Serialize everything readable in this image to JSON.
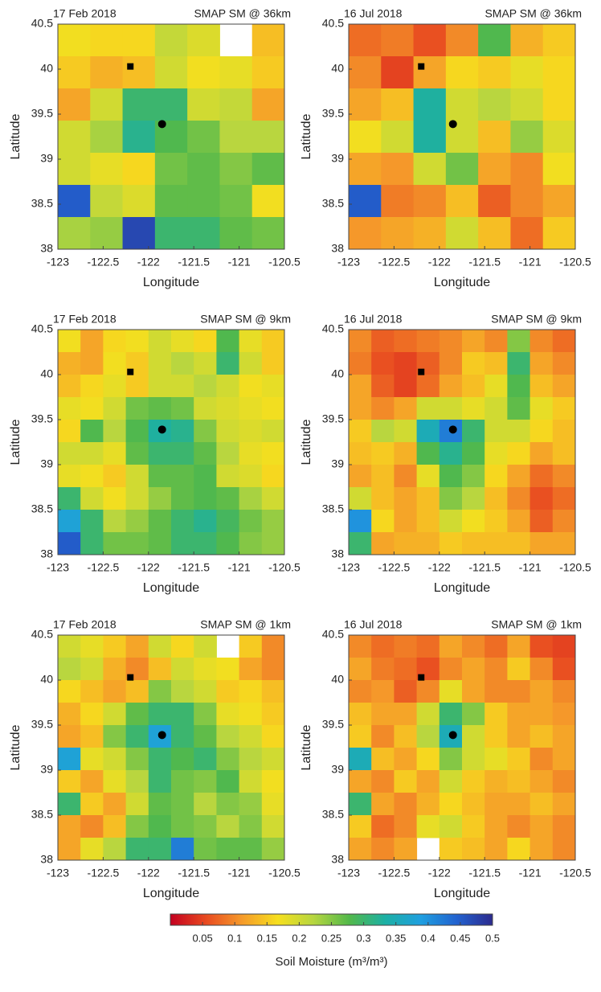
{
  "chart_data": [
    {
      "type": "heatmap",
      "date": "17 Feb 2018",
      "title": "SMAP SM @ 36km",
      "xlabel": "Longitude",
      "ylabel": "Latitude",
      "xlim": [
        -123,
        -120.5
      ],
      "ylim": [
        38,
        40.5
      ],
      "xticks": [
        -123,
        -122.5,
        -122,
        -121.5,
        -121,
        -120.5
      ],
      "yticks": [
        38,
        38.5,
        39,
        39.5,
        40,
        40.5
      ],
      "values": [
        [
          0.17,
          0.16,
          0.16,
          0.21,
          0.19,
          null,
          0.14
        ],
        [
          0.15,
          0.13,
          0.14,
          0.2,
          0.17,
          0.18,
          0.15
        ],
        [
          0.12,
          0.2,
          0.3,
          0.3,
          0.2,
          0.21,
          0.12
        ],
        [
          0.2,
          0.23,
          0.32,
          0.28,
          0.26,
          0.22,
          0.22
        ],
        [
          0.2,
          0.18,
          0.16,
          0.26,
          0.27,
          0.25,
          0.27
        ],
        [
          0.45,
          0.21,
          0.19,
          0.27,
          0.27,
          0.26,
          0.17
        ],
        [
          0.23,
          0.24,
          0.47,
          0.3,
          0.3,
          0.27,
          0.26
        ]
      ],
      "sites": [
        {
          "shape": "square",
          "x": -122.2,
          "y": 40.03
        },
        {
          "shape": "circle",
          "x": -121.85,
          "y": 39.39
        }
      ]
    },
    {
      "type": "heatmap",
      "date": "16 Jul 2018",
      "title": "SMAP SM @ 36km",
      "xlabel": "Longitude",
      "ylabel": "Latitude",
      "xlim": [
        -123,
        -120.5
      ],
      "ylim": [
        38,
        40.5
      ],
      "xticks": [
        -123,
        -122.5,
        -122,
        -121.5,
        -121,
        -120.5
      ],
      "yticks": [
        38,
        38.5,
        39,
        39.5,
        40,
        40.5
      ],
      "values": [
        [
          0.08,
          0.09,
          0.06,
          0.1,
          0.28,
          0.13,
          0.15
        ],
        [
          0.1,
          0.05,
          0.12,
          0.16,
          0.15,
          0.18,
          0.16
        ],
        [
          0.12,
          0.14,
          0.33,
          0.2,
          0.22,
          0.2,
          0.16
        ],
        [
          0.17,
          0.2,
          0.33,
          0.2,
          0.14,
          0.24,
          0.19
        ],
        [
          0.12,
          0.11,
          0.2,
          0.26,
          0.12,
          0.1,
          0.17
        ],
        [
          0.45,
          0.09,
          0.1,
          0.14,
          0.07,
          0.1,
          0.12
        ],
        [
          0.11,
          0.12,
          0.13,
          0.2,
          0.14,
          0.08,
          0.15
        ]
      ],
      "sites": [
        {
          "shape": "square",
          "x": -122.2,
          "y": 40.03
        },
        {
          "shape": "circle",
          "x": -121.85,
          "y": 39.39
        }
      ]
    },
    {
      "type": "heatmap",
      "date": "17 Feb 2018",
      "title": "SMAP SM @ 9km",
      "xlabel": "Longitude",
      "ylabel": "Latitude",
      "xlim": [
        -123,
        -120.5
      ],
      "ylim": [
        38,
        40.5
      ],
      "xticks": [
        -123,
        -122.5,
        -122,
        -121.5,
        -121,
        -120.5
      ],
      "yticks": [
        38,
        38.5,
        39,
        39.5,
        40,
        40.5
      ],
      "values": [
        [
          0.17,
          0.12,
          0.16,
          0.17,
          0.2,
          0.18,
          0.16,
          0.28,
          0.18,
          0.15
        ],
        [
          0.13,
          0.12,
          0.17,
          0.15,
          0.2,
          0.22,
          0.2,
          0.3,
          0.2,
          0.15
        ],
        [
          0.14,
          0.16,
          0.18,
          0.15,
          0.2,
          0.2,
          0.22,
          0.2,
          0.17,
          0.18
        ],
        [
          0.18,
          0.17,
          0.2,
          0.26,
          0.27,
          0.26,
          0.2,
          0.19,
          0.18,
          0.17
        ],
        [
          0.16,
          0.28,
          0.22,
          0.28,
          0.33,
          0.32,
          0.25,
          0.2,
          0.19,
          0.2
        ],
        [
          0.2,
          0.2,
          0.18,
          0.27,
          0.3,
          0.3,
          0.27,
          0.22,
          0.18,
          0.17
        ],
        [
          0.18,
          0.17,
          0.15,
          0.2,
          0.27,
          0.27,
          0.28,
          0.2,
          0.19,
          0.16
        ],
        [
          0.3,
          0.2,
          0.17,
          0.2,
          0.24,
          0.27,
          0.28,
          0.27,
          0.23,
          0.2
        ],
        [
          0.38,
          0.3,
          0.22,
          0.24,
          0.27,
          0.3,
          0.32,
          0.29,
          0.26,
          0.24
        ],
        [
          0.45,
          0.3,
          0.26,
          0.26,
          0.27,
          0.3,
          0.3,
          0.28,
          0.25,
          0.24
        ]
      ],
      "sites": [
        {
          "shape": "square",
          "x": -122.2,
          "y": 40.03
        },
        {
          "shape": "circle",
          "x": -121.85,
          "y": 39.39
        }
      ]
    },
    {
      "type": "heatmap",
      "date": "16 Jul 2018",
      "title": "SMAP SM @ 9km",
      "xlabel": "Longitude",
      "ylabel": "Latitude",
      "xlim": [
        -123,
        -120.5
      ],
      "ylim": [
        38,
        40.5
      ],
      "xticks": [
        -123,
        -122.5,
        -122,
        -121.5,
        -121,
        -120.5
      ],
      "yticks": [
        38,
        38.5,
        39,
        39.5,
        40,
        40.5
      ],
      "values": [
        [
          0.1,
          0.07,
          0.08,
          0.09,
          0.1,
          0.12,
          0.1,
          0.25,
          0.1,
          0.08
        ],
        [
          0.09,
          0.06,
          0.05,
          0.07,
          0.1,
          0.15,
          0.14,
          0.3,
          0.12,
          0.1
        ],
        [
          0.12,
          0.07,
          0.05,
          0.08,
          0.12,
          0.14,
          0.18,
          0.28,
          0.14,
          0.12
        ],
        [
          0.12,
          0.1,
          0.12,
          0.2,
          0.2,
          0.18,
          0.2,
          0.27,
          0.18,
          0.15
        ],
        [
          0.15,
          0.22,
          0.2,
          0.35,
          0.42,
          0.3,
          0.2,
          0.2,
          0.16,
          0.14
        ],
        [
          0.14,
          0.15,
          0.13,
          0.28,
          0.32,
          0.28,
          0.18,
          0.16,
          0.12,
          0.14
        ],
        [
          0.12,
          0.14,
          0.1,
          0.18,
          0.28,
          0.25,
          0.16,
          0.12,
          0.08,
          0.1
        ],
        [
          0.2,
          0.14,
          0.12,
          0.14,
          0.25,
          0.22,
          0.14,
          0.1,
          0.06,
          0.08
        ],
        [
          0.4,
          0.16,
          0.12,
          0.14,
          0.2,
          0.17,
          0.15,
          0.12,
          0.07,
          0.1
        ],
        [
          0.3,
          0.12,
          0.13,
          0.13,
          0.15,
          0.14,
          0.14,
          0.14,
          0.12,
          0.12
        ]
      ],
      "sites": [
        {
          "shape": "square",
          "x": -122.2,
          "y": 40.03
        },
        {
          "shape": "circle",
          "x": -121.85,
          "y": 39.39
        }
      ]
    },
    {
      "type": "heatmap",
      "date": "17 Feb 2018",
      "title": "SMAP SM @ 1km",
      "xlabel": "Longitude",
      "ylabel": "Latitude",
      "xlim": [
        -123,
        -120.5
      ],
      "ylim": [
        38,
        40.5
      ],
      "xticks": [
        -123,
        -122.5,
        -122,
        -121.5,
        -121,
        -120.5
      ],
      "yticks": [
        38,
        38.5,
        39,
        39.5,
        40,
        40.5
      ],
      "values": [
        [
          0.2,
          0.18,
          0.15,
          0.12,
          0.2,
          0.16,
          0.2,
          null,
          0.15,
          0.1
        ],
        [
          0.22,
          0.2,
          0.13,
          0.1,
          0.14,
          0.2,
          0.18,
          0.17,
          0.12,
          0.1
        ],
        [
          0.16,
          0.14,
          0.12,
          0.14,
          0.25,
          0.22,
          0.2,
          0.15,
          0.16,
          0.14
        ],
        [
          0.13,
          0.16,
          0.2,
          0.27,
          0.3,
          0.3,
          0.25,
          0.18,
          0.17,
          0.15
        ],
        [
          0.12,
          0.14,
          0.25,
          0.3,
          0.38,
          0.3,
          0.27,
          0.22,
          0.2,
          0.16
        ],
        [
          0.38,
          0.18,
          0.2,
          0.25,
          0.3,
          0.28,
          0.3,
          0.25,
          0.22,
          0.2
        ],
        [
          0.15,
          0.12,
          0.18,
          0.22,
          0.3,
          0.26,
          0.25,
          0.28,
          0.2,
          0.17
        ],
        [
          0.3,
          0.15,
          0.12,
          0.2,
          0.27,
          0.26,
          0.22,
          0.25,
          0.24,
          0.18
        ],
        [
          0.12,
          0.1,
          0.14,
          0.25,
          0.28,
          0.26,
          0.25,
          0.22,
          0.25,
          0.2
        ],
        [
          0.12,
          0.18,
          0.22,
          0.3,
          0.3,
          0.42,
          0.26,
          0.27,
          0.27,
          0.24
        ]
      ],
      "sites": [
        {
          "shape": "square",
          "x": -122.2,
          "y": 40.03
        },
        {
          "shape": "circle",
          "x": -121.85,
          "y": 39.39
        }
      ]
    },
    {
      "type": "heatmap",
      "date": "16 Jul 2018",
      "title": "SMAP SM @ 1km",
      "xlabel": "Longitude",
      "ylabel": "Latitude",
      "xlim": [
        -123,
        -120.5
      ],
      "ylim": [
        38,
        40.5
      ],
      "xticks": [
        -123,
        -122.5,
        -122,
        -121.5,
        -121,
        -120.5
      ],
      "yticks": [
        38,
        38.5,
        39,
        39.5,
        40,
        40.5
      ],
      "values": [
        [
          0.1,
          0.08,
          0.09,
          0.08,
          0.12,
          0.1,
          0.08,
          0.12,
          0.06,
          0.05
        ],
        [
          0.12,
          0.09,
          0.08,
          0.06,
          0.1,
          0.12,
          0.1,
          0.15,
          0.1,
          0.06
        ],
        [
          0.1,
          0.11,
          0.07,
          0.1,
          0.18,
          0.12,
          0.1,
          0.1,
          0.12,
          0.1
        ],
        [
          0.14,
          0.12,
          0.12,
          0.2,
          0.3,
          0.25,
          0.15,
          0.12,
          0.12,
          0.11
        ],
        [
          0.15,
          0.1,
          0.14,
          0.22,
          0.35,
          0.2,
          0.15,
          0.12,
          0.14,
          0.12
        ],
        [
          0.35,
          0.14,
          0.12,
          0.16,
          0.25,
          0.2,
          0.18,
          0.15,
          0.1,
          0.12
        ],
        [
          0.12,
          0.1,
          0.15,
          0.12,
          0.2,
          0.15,
          0.13,
          0.14,
          0.12,
          0.1
        ],
        [
          0.3,
          0.12,
          0.1,
          0.13,
          0.16,
          0.14,
          0.12,
          0.12,
          0.14,
          0.12
        ],
        [
          0.15,
          0.08,
          0.1,
          0.18,
          0.2,
          0.15,
          0.12,
          0.1,
          0.12,
          0.1
        ],
        [
          0.12,
          0.1,
          0.12,
          null,
          0.15,
          0.14,
          0.12,
          0.16,
          0.12,
          0.1
        ]
      ],
      "sites": [
        {
          "shape": "square",
          "x": -122.2,
          "y": 40.03
        },
        {
          "shape": "circle",
          "x": -121.85,
          "y": 39.39
        }
      ]
    }
  ],
  "colorbar": {
    "label": "Soil Moisture (m³/m³)",
    "lim": [
      0,
      0.5
    ],
    "ticks": [
      0.05,
      0.1,
      0.15,
      0.2,
      0.25,
      0.3,
      0.35,
      0.4,
      0.45,
      0.5
    ],
    "colormap": [
      "#c40020",
      "#e84a20",
      "#f59a2a",
      "#f6df1e",
      "#b6d640",
      "#52b84a",
      "#1cb0a4",
      "#1f9fe0",
      "#2262cf",
      "#2c2a8e"
    ]
  }
}
